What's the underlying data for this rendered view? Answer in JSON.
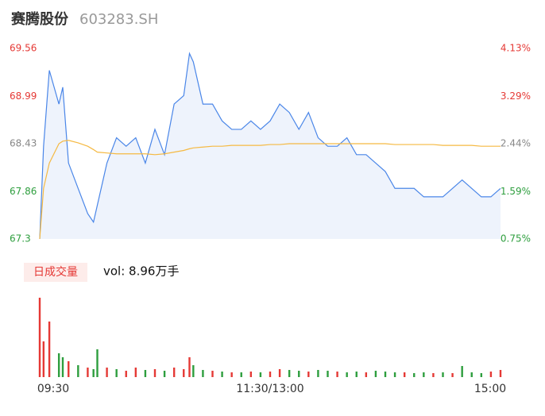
{
  "chart_data": {
    "type": "line",
    "title": "赛腾股份",
    "subtitle": "603283.SH",
    "xlim": [
      0,
      240
    ],
    "xticks": [
      {
        "value": 0,
        "label": "09:30"
      },
      {
        "value": 120,
        "label": "11:30/13:00"
      },
      {
        "value": 240,
        "label": "15:00"
      }
    ],
    "ylim": [
      67.3,
      69.56
    ],
    "yticks": [
      69.56,
      68.99,
      68.43,
      67.86,
      67.3
    ],
    "y2ticks": [
      "4.13%",
      "3.29%",
      "2.44%",
      "1.59%",
      "0.75%"
    ],
    "x": [
      0,
      2,
      5,
      10,
      12,
      15,
      20,
      25,
      28,
      30,
      35,
      40,
      45,
      50,
      55,
      60,
      65,
      70,
      75,
      78,
      80,
      85,
      90,
      95,
      100,
      105,
      110,
      115,
      120,
      125,
      130,
      135,
      140,
      145,
      150,
      155,
      160,
      165,
      170,
      175,
      180,
      185,
      190,
      195,
      200,
      205,
      210,
      215,
      220,
      225,
      230,
      235,
      240
    ],
    "series": [
      {
        "name": "price",
        "color": "#4a86e8",
        "values": [
          67.3,
          68.4,
          69.3,
          68.9,
          69.1,
          68.2,
          67.9,
          67.6,
          67.5,
          67.7,
          68.2,
          68.5,
          68.4,
          68.5,
          68.2,
          68.6,
          68.3,
          68.9,
          69.0,
          69.5,
          69.4,
          68.9,
          68.9,
          68.7,
          68.6,
          68.6,
          68.7,
          68.6,
          68.7,
          68.9,
          68.8,
          68.6,
          68.8,
          68.5,
          68.4,
          68.4,
          68.5,
          68.3,
          68.3,
          68.2,
          68.1,
          67.9,
          67.9,
          67.9,
          67.8,
          67.8,
          67.8,
          67.9,
          68.0,
          67.9,
          67.8,
          67.8,
          67.9
        ]
      },
      {
        "name": "average",
        "color": "#f5b942",
        "values": [
          67.3,
          67.9,
          68.2,
          68.43,
          68.46,
          68.47,
          68.44,
          68.4,
          68.36,
          68.33,
          68.32,
          68.31,
          68.31,
          68.31,
          68.31,
          68.3,
          68.31,
          68.33,
          68.35,
          68.37,
          68.38,
          68.39,
          68.4,
          68.4,
          68.41,
          68.41,
          68.41,
          68.41,
          68.42,
          68.42,
          68.43,
          68.43,
          68.43,
          68.43,
          68.43,
          68.43,
          68.43,
          68.43,
          68.43,
          68.43,
          68.43,
          68.42,
          68.42,
          68.42,
          68.42,
          68.42,
          68.41,
          68.41,
          68.41,
          68.41,
          68.4,
          68.4,
          68.4
        ]
      }
    ],
    "volume": {
      "label": "日成交量",
      "text": "vol: 8.96万手",
      "ylim": [
        0,
        100
      ],
      "values": [
        100,
        45,
        70,
        30,
        25,
        20,
        15,
        12,
        10,
        35,
        12,
        10,
        8,
        12,
        9,
        10,
        8,
        12,
        10,
        25,
        15,
        9,
        8,
        7,
        6,
        6,
        7,
        6,
        7,
        10,
        9,
        8,
        7,
        9,
        8,
        7,
        6,
        7,
        6,
        8,
        7,
        6,
        6,
        5,
        6,
        5,
        6,
        5,
        14,
        6,
        5,
        7,
        9
      ],
      "colors": [
        "#e53935",
        "#e53935",
        "#e53935",
        "#2e9e3e",
        "#2e9e3e",
        "#e53935",
        "#2e9e3e",
        "#e53935",
        "#2e9e3e",
        "#2e9e3e",
        "#e53935",
        "#2e9e3e",
        "#e53935",
        "#e53935",
        "#2e9e3e",
        "#e53935",
        "#2e9e3e",
        "#e53935",
        "#e53935",
        "#e53935",
        "#2e9e3e",
        "#2e9e3e",
        "#e53935",
        "#2e9e3e",
        "#e53935",
        "#2e9e3e",
        "#e53935",
        "#2e9e3e",
        "#e53935",
        "#e53935",
        "#2e9e3e",
        "#2e9e3e",
        "#e53935",
        "#2e9e3e",
        "#2e9e3e",
        "#e53935",
        "#2e9e3e",
        "#2e9e3e",
        "#e53935",
        "#2e9e3e",
        "#2e9e3e",
        "#2e9e3e",
        "#e53935",
        "#2e9e3e",
        "#2e9e3e",
        "#e53935",
        "#2e9e3e",
        "#e53935",
        "#2e9e3e",
        "#2e9e3e",
        "#2e9e3e",
        "#e53935",
        "#e53935"
      ]
    }
  }
}
